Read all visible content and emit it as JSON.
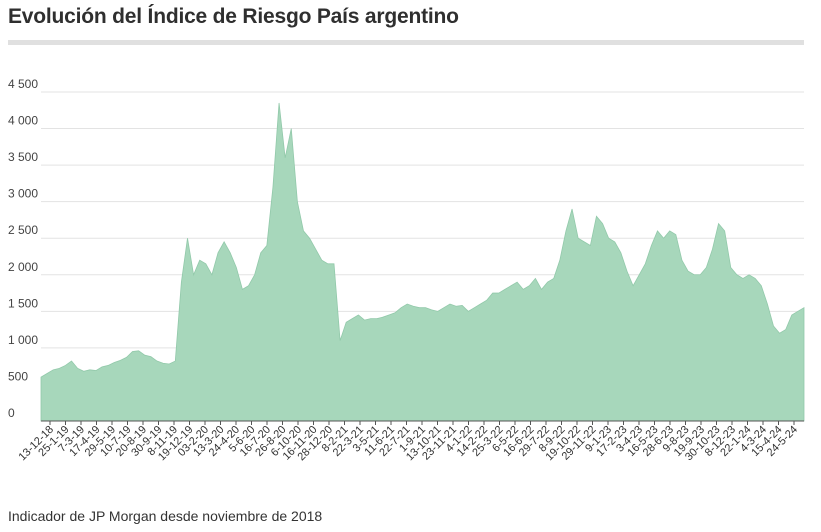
{
  "title": "Evolución del Índice de Riesgo País argentino",
  "footer": "Indicador de JP Morgan desde noviembre de 2018",
  "colors": {
    "area_fill": "#a7d7bb",
    "area_stroke": "#92c9aa",
    "grid": "#e3e3e3",
    "axis": "#555555"
  },
  "chart_data": {
    "type": "area",
    "title": "Evolución del Índice de Riesgo País argentino",
    "xlabel": "",
    "ylabel": "",
    "ylim": [
      0,
      4500
    ],
    "yticks": [
      0,
      500,
      1000,
      1500,
      2000,
      2500,
      3000,
      3500,
      4000,
      4500
    ],
    "ytick_labels": [
      "0",
      "500",
      "1 000",
      "1 500",
      "2 000",
      "2 500",
      "3 000",
      "3 500",
      "4 000",
      "4 500"
    ],
    "grid": true,
    "xtick_labels": [
      "13-12-18",
      "25-1-19",
      "7-3-19",
      "17-4-19",
      "29-5-19",
      "10-7-19",
      "20-8-19",
      "30-9-19",
      "8-11-19",
      "19-12-19",
      "03-2-20",
      "13-3-20",
      "24-4-20",
      "5-6-20",
      "16-7-20",
      "26-8-20",
      "6-10-20",
      "16-11-20",
      "28-12-20",
      "8-2-21",
      "22-3-21",
      "3-5-21",
      "11-6-21",
      "22-7-21",
      "1-9-21",
      "13-10-21",
      "23-11-21",
      "4-1-22",
      "14-2-22",
      "25-3-22",
      "6-5-22",
      "16-6-22",
      "29-7-22",
      "8-9-22",
      "19-10-22",
      "29-11-22",
      "9-1-23",
      "17-2-23",
      "3-4-23",
      "16-5-23",
      "28-6-23",
      "9-8-23",
      "19-9-23",
      "30-10-23",
      "8-12-23",
      "22-1-24",
      "4-3-24",
      "15-4-24",
      "24-5-24"
    ],
    "series": [
      {
        "values": [
          600,
          650,
          700,
          720,
          760,
          820,
          720,
          680,
          700,
          690,
          740,
          760,
          800,
          830,
          870,
          950,
          960,
          900,
          880,
          820,
          790,
          780,
          820,
          1900,
          2500,
          2000,
          2200,
          2150,
          2000,
          2300,
          2450,
          2300,
          2100,
          1800,
          1850,
          2000,
          2300,
          2400,
          3200,
          4350,
          3600,
          4000,
          3000,
          2600,
          2500,
          2350,
          2200,
          2150,
          2150,
          1100,
          1350,
          1400,
          1450,
          1380,
          1400,
          1400,
          1420,
          1450,
          1480,
          1550,
          1600,
          1570,
          1550,
          1550,
          1520,
          1500,
          1550,
          1600,
          1570,
          1580,
          1500,
          1550,
          1600,
          1650,
          1750,
          1750,
          1800,
          1850,
          1900,
          1800,
          1850,
          1950,
          1800,
          1900,
          1950,
          2200,
          2600,
          2900,
          2500,
          2450,
          2400,
          2800,
          2700,
          2500,
          2450,
          2300,
          2050,
          1850,
          2000,
          2150,
          2400,
          2600,
          2500,
          2600,
          2550,
          2200,
          2050,
          2000,
          2000,
          2100,
          2350,
          2700,
          2600,
          2100,
          2000,
          1950,
          2000,
          1950,
          1850,
          1600,
          1300,
          1200,
          1250,
          1450,
          1500,
          1550
        ]
      }
    ]
  }
}
